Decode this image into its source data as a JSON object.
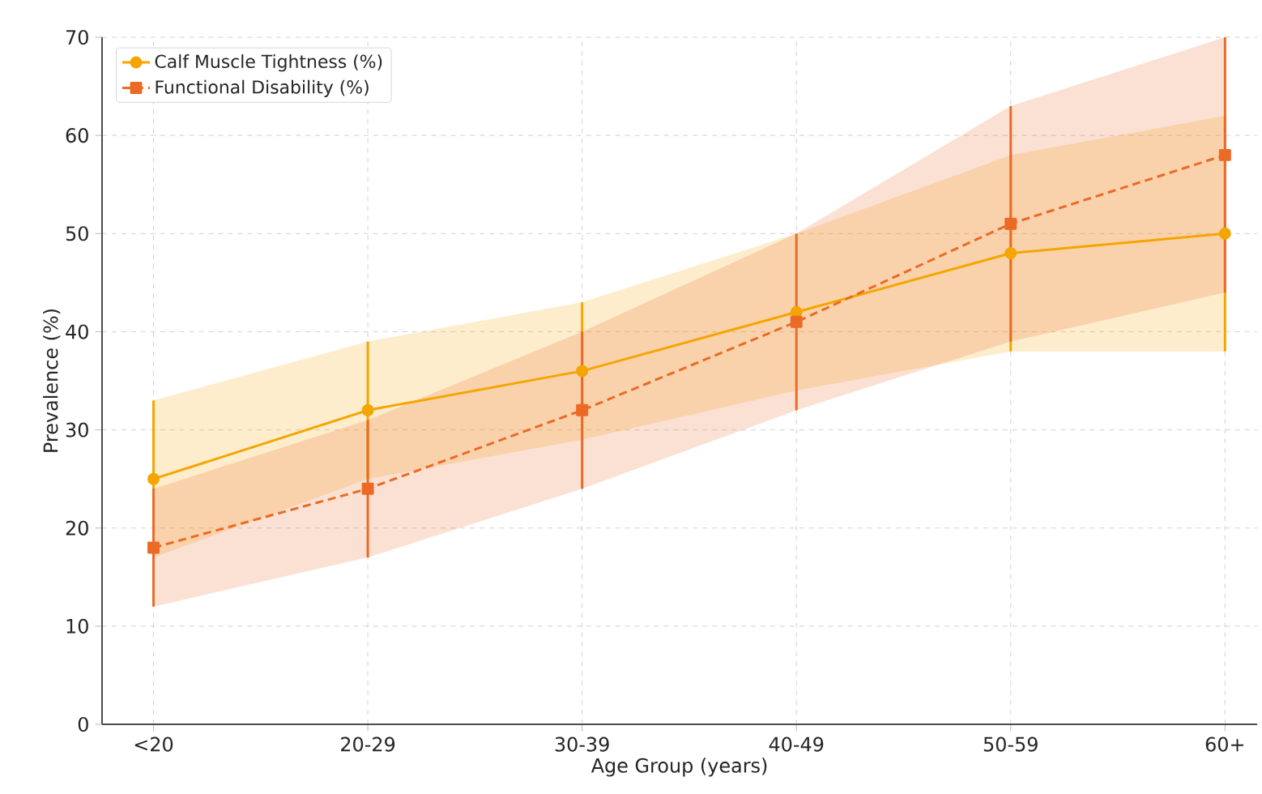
{
  "chart_data": {
    "type": "line",
    "xlabel": "Age Group (years)",
    "ylabel": "Prevalence (%)",
    "categories": [
      "<20",
      "20-29",
      "30-39",
      "40-49",
      "50-59",
      "60+"
    ],
    "series": [
      {
        "name": "Calf Muscle Tightness (%)",
        "color": "#f5a500",
        "marker": "circle",
        "line_style": "solid",
        "values": [
          25,
          32,
          36,
          42,
          48,
          50
        ],
        "errors": [
          8,
          7,
          7,
          null,
          10,
          12
        ],
        "lower": [
          17,
          25,
          29,
          34,
          38,
          38
        ],
        "upper": [
          33,
          39,
          43,
          50,
          58,
          62
        ]
      },
      {
        "name": "Functional Disability (%)",
        "color": "#eb6a26",
        "marker": "square",
        "line_style": "dashed",
        "values": [
          18,
          24,
          32,
          41,
          51,
          58
        ],
        "errors": [
          6,
          7,
          8,
          9,
          12,
          [
            44,
            70
          ]
        ],
        "lower": [
          12,
          17,
          24,
          32,
          39,
          44
        ],
        "upper": [
          24,
          31,
          40,
          50,
          63,
          70
        ]
      }
    ],
    "ylim": [
      0,
      70
    ],
    "yticks": [
      0,
      10,
      20,
      30,
      40,
      50,
      60,
      70
    ],
    "grid": true,
    "legend": "top left"
  }
}
